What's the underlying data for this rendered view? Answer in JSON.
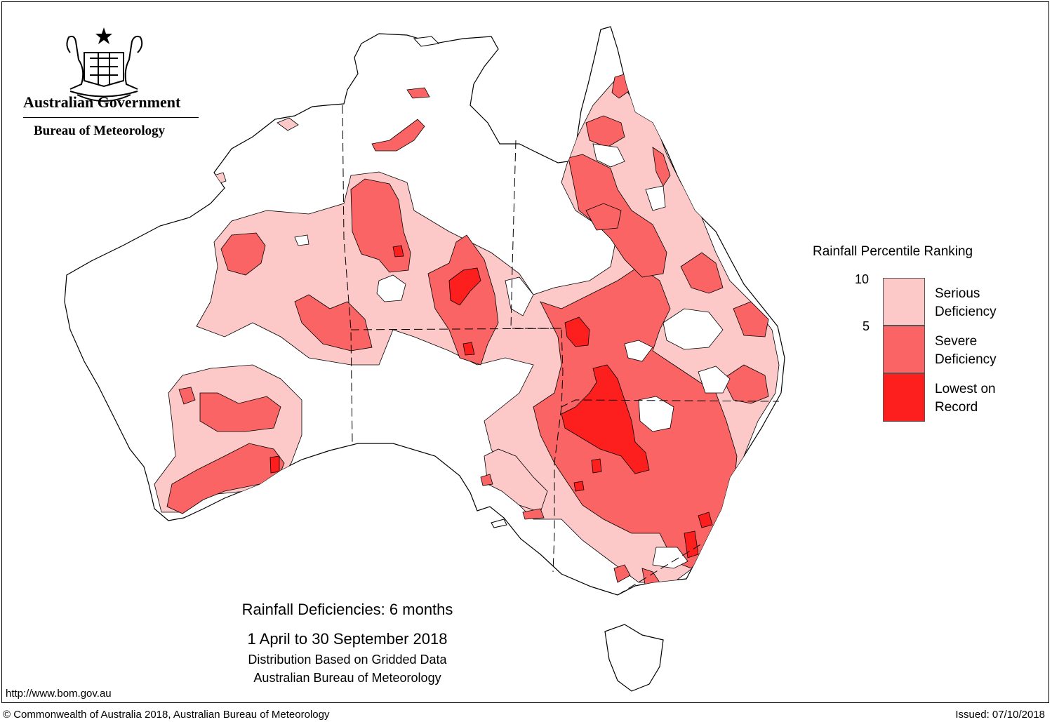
{
  "header": {
    "government": "Australian Government",
    "bureau": "Bureau of Meteorology",
    "crest_icon": "coat-of-arms-icon"
  },
  "legend": {
    "title": "Rainfall Percentile Ranking",
    "tick_top": "10",
    "tick_mid": "5",
    "categories": [
      {
        "line1": "Serious",
        "line2": "Deficiency",
        "color": "#fcc8c8"
      },
      {
        "line1": "Severe",
        "line2": "Deficiency",
        "color": "#fa6464"
      },
      {
        "line1": "Lowest on",
        "line2": "Record",
        "color": "#fd1e1e"
      }
    ]
  },
  "caption": {
    "title": "Rainfall Deficiencies: 6 months",
    "period": "1 April to 30 September 2018",
    "line3": "Distribution Based on Gridded Data",
    "line4": "Australian Bureau of Meteorology"
  },
  "footer": {
    "url": "http://www.bom.gov.au",
    "copyright": "© Commonwealth of Australia 2018, Australian Bureau of Meteorology",
    "issued": "Issued: 07/10/2018"
  }
}
